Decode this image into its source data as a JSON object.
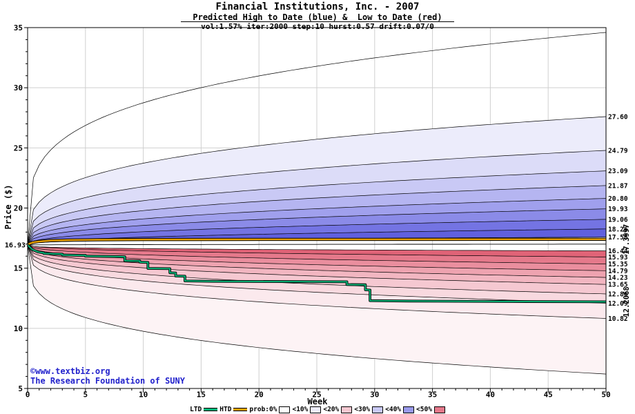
{
  "header": {
    "title": "Financial Institutions, Inc. - 2007",
    "subtitle": "Predicted High to Date (blue) &  Low to Date (red)",
    "parameters": "vol:1.57% iter:2000 step:10 hurst:0.57 drift:0.07/0"
  },
  "axes": {
    "x": {
      "label": "Week",
      "min": 0,
      "max": 50,
      "major_ticks": [
        0,
        5,
        10,
        15,
        20,
        25,
        30,
        35,
        40,
        45,
        50
      ]
    },
    "y": {
      "label": "Price ($)",
      "min": 5,
      "max": 35,
      "major_ticks": [
        5,
        10,
        15,
        20,
        25,
        30,
        35
      ]
    }
  },
  "start_price_label": "16.93",
  "watermark": {
    "line1": "©www.textbiz.org",
    "line2": "The Research Foundation of SUNY",
    "color": "#2222cc"
  },
  "legend": {
    "ltd": {
      "label": "LTD",
      "color": "#00b377"
    },
    "htd": {
      "label": "HTD",
      "color": "#e8a000"
    },
    "prob_bands": [
      {
        "label": "prob:0%",
        "color": "#ffffff"
      },
      {
        "label": "<10%",
        "color": "#ececfb"
      },
      {
        "label": "<20%",
        "color": "#f5c8d1"
      },
      {
        "label": "<30%",
        "color": "#c9c9f5"
      },
      {
        "label": "<40%",
        "color": "#9a9aeb"
      },
      {
        "label": "<50%",
        "color": "#e5798b"
      }
    ]
  },
  "chart_data": {
    "type": "area",
    "variant": "monte-carlo-probability-fan",
    "x_range": [
      0,
      50
    ],
    "start_week": 0,
    "start_price": 16.93,
    "grid_color": "#cfcfcf",
    "endpoint_label_color": "#00a040",
    "top_boundaries": [
      {
        "week50": 34.6,
        "alpha": 0.25,
        "label": null
      },
      {
        "week50": 27.6,
        "alpha": 0.28,
        "label": "27.60"
      },
      {
        "week50": 24.79,
        "alpha": 0.3,
        "label": "24.79"
      },
      {
        "week50": 23.09,
        "alpha": 0.32,
        "label": "23.09"
      },
      {
        "week50": 21.87,
        "alpha": 0.34,
        "label": "21.87"
      },
      {
        "week50": 20.8,
        "alpha": 0.36,
        "label": "20.80"
      },
      {
        "week50": 19.93,
        "alpha": 0.38,
        "label": "19.93"
      },
      {
        "week50": 19.06,
        "alpha": 0.41,
        "label": "19.06"
      },
      {
        "week50": 18.26,
        "alpha": 0.44,
        "label": "18.26"
      },
      {
        "week50": 17.58,
        "alpha": 0.3,
        "label": "17.58"
      }
    ],
    "bottom_boundaries": [
      {
        "week50": 16.44,
        "alpha": 0.3,
        "label": "16.44"
      },
      {
        "week50": 15.93,
        "alpha": 0.44,
        "label": "15.93"
      },
      {
        "week50": 15.35,
        "alpha": 0.41,
        "label": "15.35"
      },
      {
        "week50": 14.79,
        "alpha": 0.38,
        "label": "14.79"
      },
      {
        "week50": 14.23,
        "alpha": 0.36,
        "label": "14.23"
      },
      {
        "week50": 13.65,
        "alpha": 0.34,
        "label": "13.65"
      },
      {
        "week50": 12.86,
        "alpha": 0.32,
        "label": "12.86"
      },
      {
        "week50": 12.09,
        "alpha": 0.3,
        "label": "12.09"
      },
      {
        "week50": 10.82,
        "alpha": 0.28,
        "label": "10.82"
      },
      {
        "week50": 6.2,
        "alpha": 0.25,
        "label": null
      }
    ],
    "top_band_fills": [
      "none",
      "#ececfb",
      "#dcdcf8",
      "#c9c9f5",
      "#b5b5f1",
      "#a0a0ed",
      "#8b8be8",
      "#7474e3",
      "#6060de"
    ],
    "bottom_band_fills": [
      "#e06377",
      "#e5798b",
      "#ea8e9e",
      "#eea3b0",
      "#f2b6c1",
      "#f5c8d1",
      "#f8d9df",
      "#fbe9ed",
      "#fdf3f5"
    ],
    "median": {
      "week50": 17.0,
      "alpha": 0.5
    },
    "htd": {
      "name": "HTD",
      "color": "#e8a000",
      "final_value": 17.3997,
      "final_label": "17.3997",
      "points": [
        [
          0,
          16.93
        ],
        [
          0.2,
          17.06
        ],
        [
          0.5,
          17.15
        ],
        [
          1,
          17.22
        ],
        [
          2,
          17.29
        ],
        [
          3.5,
          17.33
        ],
        [
          6,
          17.36
        ],
        [
          10,
          17.38
        ],
        [
          18,
          17.39
        ],
        [
          30,
          17.3965
        ],
        [
          50,
          17.3997
        ]
      ]
    },
    "ltd": {
      "name": "LTD",
      "color": "#00b377",
      "final_value": 12.2068,
      "final_label": "12.2068",
      "points": [
        [
          0,
          16.93
        ],
        [
          0.4,
          16.55
        ],
        [
          0.9,
          16.35
        ],
        [
          1.4,
          16.27
        ],
        [
          1.4,
          16.22
        ],
        [
          3,
          16.17
        ],
        [
          3,
          16.1
        ],
        [
          5,
          16.06
        ],
        [
          5,
          16.0
        ],
        [
          7.5,
          15.97
        ],
        [
          8.4,
          15.95
        ],
        [
          8.4,
          15.62
        ],
        [
          9.7,
          15.6
        ],
        [
          9.7,
          15.5
        ],
        [
          10.4,
          15.48
        ],
        [
          10.4,
          14.98
        ],
        [
          12.3,
          14.96
        ],
        [
          12.3,
          14.62
        ],
        [
          12.8,
          14.6
        ],
        [
          12.8,
          14.35
        ],
        [
          13.6,
          14.33
        ],
        [
          13.6,
          13.94
        ],
        [
          16,
          13.91
        ],
        [
          27.6,
          13.87
        ],
        [
          27.6,
          13.64
        ],
        [
          29.2,
          13.62
        ],
        [
          29.2,
          13.2
        ],
        [
          29.6,
          13.18
        ],
        [
          29.6,
          12.3
        ],
        [
          33,
          12.27
        ],
        [
          42,
          12.23
        ],
        [
          50,
          12.2068
        ]
      ]
    }
  }
}
